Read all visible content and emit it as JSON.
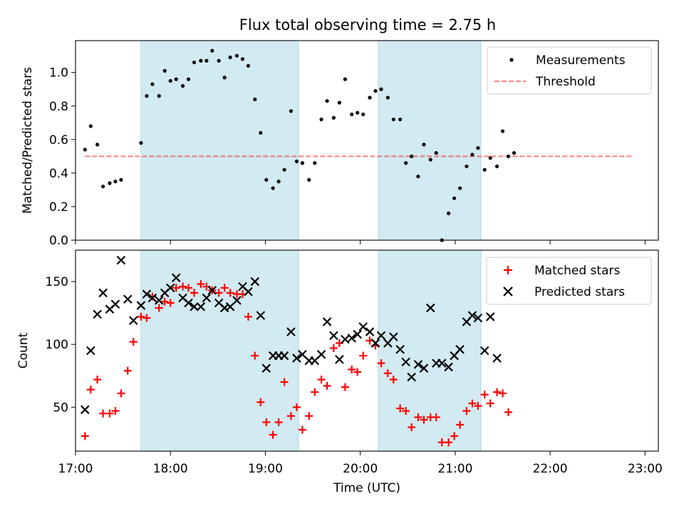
{
  "title": "Flux total observing time = 2.75 h",
  "colors": {
    "shade": "#add8e6",
    "measurement": "#000000",
    "threshold": "#ff0000",
    "matched": "#ff0000",
    "predicted": "#000000"
  },
  "chart_data": [
    {
      "type": "scatter",
      "ylabel": "Matched/Predicted stars",
      "xlabel": "",
      "xlim": [
        17.0,
        23.14
      ],
      "ylim": [
        0,
        1.19
      ],
      "yticks": [
        0.0,
        0.2,
        0.4,
        0.6,
        0.8,
        1.0
      ],
      "ytick_labels": [
        "0.0",
        "0.2",
        "0.4",
        "0.6",
        "0.8",
        "1.0"
      ],
      "shaded_intervals": [
        [
          17.69,
          19.35
        ],
        [
          20.19,
          21.27
        ]
      ],
      "legend": {
        "position": "upper-right",
        "entries": [
          "Measurements",
          "Threshold"
        ]
      },
      "threshold": {
        "name": "Threshold",
        "value": 0.5,
        "x_range": [
          17.1,
          22.86
        ]
      },
      "series": [
        {
          "name": "Measurements",
          "points": [
            [
              17.1,
              0.54
            ],
            [
              17.16,
              0.68
            ],
            [
              17.23,
              0.57
            ],
            [
              17.29,
              0.32
            ],
            [
              17.36,
              0.34
            ],
            [
              17.42,
              0.35
            ],
            [
              17.48,
              0.36
            ],
            [
              17.69,
              0.58
            ],
            [
              17.75,
              0.86
            ],
            [
              17.81,
              0.93
            ],
            [
              17.88,
              0.86
            ],
            [
              17.94,
              1.01
            ],
            [
              18.0,
              0.95
            ],
            [
              18.06,
              0.96
            ],
            [
              18.13,
              0.92
            ],
            [
              18.19,
              0.96
            ],
            [
              18.25,
              1.06
            ],
            [
              18.32,
              1.07
            ],
            [
              18.38,
              1.07
            ],
            [
              18.44,
              1.13
            ],
            [
              18.51,
              1.07
            ],
            [
              18.57,
              0.97
            ],
            [
              18.63,
              1.09
            ],
            [
              18.7,
              1.1
            ],
            [
              18.76,
              1.08
            ],
            [
              18.82,
              1.04
            ],
            [
              18.89,
              0.84
            ],
            [
              18.95,
              0.64
            ],
            [
              19.01,
              0.36
            ],
            [
              19.08,
              0.31
            ],
            [
              19.14,
              0.35
            ],
            [
              19.2,
              0.42
            ],
            [
              19.27,
              0.77
            ],
            [
              19.33,
              0.47
            ],
            [
              19.39,
              0.46
            ],
            [
              19.46,
              0.36
            ],
            [
              19.52,
              0.46
            ],
            [
              19.59,
              0.72
            ],
            [
              19.65,
              0.83
            ],
            [
              19.72,
              0.73
            ],
            [
              19.78,
              0.82
            ],
            [
              19.84,
              0.96
            ],
            [
              19.91,
              0.75
            ],
            [
              19.97,
              0.76
            ],
            [
              20.03,
              0.75
            ],
            [
              20.1,
              0.85
            ],
            [
              20.16,
              0.89
            ],
            [
              20.22,
              0.9
            ],
            [
              20.29,
              0.85
            ],
            [
              20.35,
              0.72
            ],
            [
              20.42,
              0.72
            ],
            [
              20.48,
              0.46
            ],
            [
              20.54,
              0.5
            ],
            [
              20.61,
              0.38
            ],
            [
              20.67,
              0.57
            ],
            [
              20.74,
              0.48
            ],
            [
              20.8,
              0.52
            ],
            [
              20.86,
              0.0
            ],
            [
              20.93,
              0.16
            ],
            [
              20.99,
              0.25
            ],
            [
              21.05,
              0.31
            ],
            [
              21.12,
              0.44
            ],
            [
              21.18,
              0.51
            ],
            [
              21.24,
              0.55
            ],
            [
              21.31,
              0.42
            ],
            [
              21.37,
              0.49
            ],
            [
              21.44,
              0.44
            ],
            [
              21.5,
              0.65
            ],
            [
              21.56,
              0.5
            ],
            [
              21.62,
              0.52
            ]
          ]
        }
      ]
    },
    {
      "type": "scatter",
      "ylabel": "Count",
      "xlabel": "Time (UTC)",
      "xlim": [
        17.0,
        23.14
      ],
      "ylim": [
        15,
        175
      ],
      "yticks": [
        50,
        100,
        150
      ],
      "ytick_labels": [
        "50",
        "100",
        "150"
      ],
      "xticks": [
        17,
        18,
        19,
        20,
        21,
        22,
        23
      ],
      "xtick_labels": [
        "17:00",
        "18:00",
        "19:00",
        "20:00",
        "21:00",
        "22:00",
        "23:00"
      ],
      "shaded_intervals": [
        [
          17.69,
          19.35
        ],
        [
          20.19,
          21.27
        ]
      ],
      "legend": {
        "position": "upper-right",
        "entries": [
          "Matched stars",
          "Predicted stars"
        ]
      },
      "series": [
        {
          "name": "Matched stars",
          "points": [
            [
              17.1,
              27
            ],
            [
              17.16,
              64
            ],
            [
              17.23,
              72
            ],
            [
              17.29,
              45
            ],
            [
              17.36,
              45
            ],
            [
              17.42,
              47
            ],
            [
              17.48,
              61
            ],
            [
              17.55,
              79
            ],
            [
              17.61,
              102
            ],
            [
              17.69,
              122
            ],
            [
              17.75,
              121
            ],
            [
              17.81,
              138
            ],
            [
              17.88,
              129
            ],
            [
              17.94,
              134
            ],
            [
              18.0,
              133
            ],
            [
              18.06,
              145
            ],
            [
              18.13,
              146
            ],
            [
              18.19,
              145
            ],
            [
              18.25,
              141
            ],
            [
              18.32,
              148
            ],
            [
              18.38,
              146
            ],
            [
              18.44,
              143
            ],
            [
              18.51,
              141
            ],
            [
              18.57,
              145
            ],
            [
              18.63,
              141
            ],
            [
              18.7,
              140
            ],
            [
              18.76,
              140
            ],
            [
              18.82,
              122
            ],
            [
              18.89,
              91
            ],
            [
              18.95,
              54
            ],
            [
              19.01,
              38
            ],
            [
              19.08,
              28
            ],
            [
              19.14,
              38
            ],
            [
              19.2,
              70
            ],
            [
              19.27,
              43
            ],
            [
              19.33,
              50
            ],
            [
              19.39,
              32
            ],
            [
              19.46,
              43
            ],
            [
              19.52,
              62
            ],
            [
              19.59,
              72
            ],
            [
              19.65,
              67
            ],
            [
              19.72,
              97
            ],
            [
              19.78,
              101
            ],
            [
              19.84,
              66
            ],
            [
              19.91,
              80
            ],
            [
              19.97,
              78
            ],
            [
              20.03,
              91
            ],
            [
              20.1,
              103
            ],
            [
              20.16,
              99
            ],
            [
              20.22,
              85
            ],
            [
              20.29,
              77
            ],
            [
              20.35,
              72
            ],
            [
              20.42,
              49
            ],
            [
              20.48,
              47
            ],
            [
              20.54,
              34
            ],
            [
              20.61,
              42
            ],
            [
              20.67,
              40
            ],
            [
              20.74,
              42
            ],
            [
              20.8,
              42
            ],
            [
              20.86,
              22
            ],
            [
              20.93,
              22
            ],
            [
              20.99,
              27
            ],
            [
              21.05,
              36
            ],
            [
              21.12,
              47
            ],
            [
              21.18,
              53
            ],
            [
              21.24,
              51
            ],
            [
              21.31,
              60
            ],
            [
              21.37,
              53
            ],
            [
              21.44,
              62
            ],
            [
              21.5,
              61
            ],
            [
              21.56,
              46
            ]
          ]
        },
        {
          "name": "Predicted stars",
          "points": [
            [
              17.1,
              48
            ],
            [
              17.16,
              95
            ],
            [
              17.23,
              124
            ],
            [
              17.29,
              141
            ],
            [
              17.36,
              128
            ],
            [
              17.42,
              132
            ],
            [
              17.48,
              167
            ],
            [
              17.55,
              136
            ],
            [
              17.61,
              119
            ],
            [
              17.69,
              131
            ],
            [
              17.75,
              140
            ],
            [
              17.81,
              137
            ],
            [
              17.88,
              135
            ],
            [
              17.94,
              141
            ],
            [
              18.0,
              145
            ],
            [
              18.06,
              153
            ],
            [
              18.13,
              137
            ],
            [
              18.19,
              133
            ],
            [
              18.25,
              130
            ],
            [
              18.32,
              130
            ],
            [
              18.38,
              137
            ],
            [
              18.44,
              143
            ],
            [
              18.51,
              133
            ],
            [
              18.57,
              129
            ],
            [
              18.63,
              130
            ],
            [
              18.7,
              135
            ],
            [
              18.76,
              146
            ],
            [
              18.82,
              142
            ],
            [
              18.89,
              150
            ],
            [
              18.95,
              123
            ],
            [
              19.01,
              81
            ],
            [
              19.08,
              91
            ],
            [
              19.14,
              91
            ],
            [
              19.2,
              91
            ],
            [
              19.27,
              110
            ],
            [
              19.33,
              89
            ],
            [
              19.39,
              92
            ],
            [
              19.46,
              87
            ],
            [
              19.52,
              87
            ],
            [
              19.59,
              92
            ],
            [
              19.65,
              118
            ],
            [
              19.72,
              107
            ],
            [
              19.78,
              88
            ],
            [
              19.84,
              104
            ],
            [
              19.91,
              105
            ],
            [
              19.97,
              108
            ],
            [
              20.03,
              114
            ],
            [
              20.1,
              110
            ],
            [
              20.16,
              101
            ],
            [
              20.22,
              107
            ],
            [
              20.29,
              101
            ],
            [
              20.35,
              106
            ],
            [
              20.42,
              96
            ],
            [
              20.48,
              86
            ],
            [
              20.54,
              74
            ],
            [
              20.61,
              84
            ],
            [
              20.67,
              81
            ],
            [
              20.74,
              129
            ],
            [
              20.8,
              85
            ],
            [
              20.86,
              85
            ],
            [
              20.93,
              82
            ],
            [
              20.99,
              91
            ],
            [
              21.05,
              96
            ],
            [
              21.12,
              118
            ],
            [
              21.18,
              123
            ],
            [
              21.24,
              121
            ],
            [
              21.31,
              95
            ],
            [
              21.37,
              122
            ],
            [
              21.44,
              89
            ]
          ]
        }
      ]
    }
  ]
}
